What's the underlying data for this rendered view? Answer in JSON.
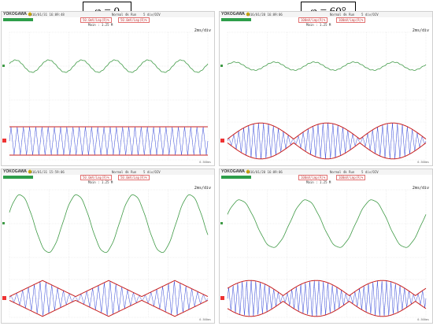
{
  "labels": {
    "left": "φ = 0",
    "right": "φ = 60°"
  },
  "panels": [
    {
      "id": "top-left",
      "logo": "YOKOGAWA",
      "date": "2016/01/31 16:09:48",
      "run": "Normal 4k Run",
      "trig": "5 div/DIV",
      "range1": "50.0mV/Lmp(R)%",
      "range2": "50.0mV/Lmp(R)%",
      "tdiv": "2ms/div",
      "main_scale": "Main : 1.25 M",
      "corner": "0.500ms"
    },
    {
      "id": "top-right",
      "logo": "YOKOGAWA",
      "date": "2016/01/20 16:09:06",
      "run": "Normal 4k Run",
      "trig": "5 div/DIV",
      "range1": "100mV/Lmp(R)%",
      "range2": "100mV/Lmp(R)%",
      "tdiv": "2ms/div",
      "main_scale": "Main : 1.25 M",
      "corner": "0.500ms"
    },
    {
      "id": "bottom-left",
      "logo": "YOKOGAWA",
      "date": "2016/01/31 15:59:06",
      "run": "Normal 4k Run",
      "trig": "5 div/DIV",
      "range1": "50.0mV/Lmp(R)%",
      "range2": "50.0mV/Lmp(R)%",
      "tdiv": "2ms/div",
      "main_scale": "Main : 1.25 M",
      "corner": "0.500ms"
    },
    {
      "id": "bottom-right",
      "logo": "YOKOGAWA",
      "date": "2016/01/20 16:09:06",
      "run": "Normal 4k Run",
      "trig": "5 div/DIV",
      "range1": "100mV/Lmp(R)%",
      "range2": "100mV/Lmp(R)%",
      "tdiv": "2ms/div",
      "main_scale": "Main : 1.25 M",
      "corner": "0.500ms"
    }
  ],
  "colors": {
    "green_trace": "#3f9a46",
    "blue_trace": "#2b3fd6",
    "red_envelope": "#c82020",
    "grid": "#d9d9d9",
    "label_magenta": "#b0309a",
    "label_orange": "#c28a00"
  },
  "waveforms": {
    "top-left": {
      "green_periods": 6,
      "green_amp": 0.18,
      "carrier_periods": 32,
      "envelope": "flat"
    },
    "top-right": {
      "green_periods": 5,
      "green_amp": 0.12,
      "carrier_periods": 40,
      "envelope": "lobes"
    },
    "bottom-left": {
      "green_periods": 3.5,
      "green_amp": 0.85,
      "carrier_periods": 34,
      "envelope": "triangle"
    },
    "bottom-right": {
      "green_periods": 3,
      "green_amp": 0.7,
      "carrier_periods": 44,
      "envelope": "lobes2"
    }
  }
}
